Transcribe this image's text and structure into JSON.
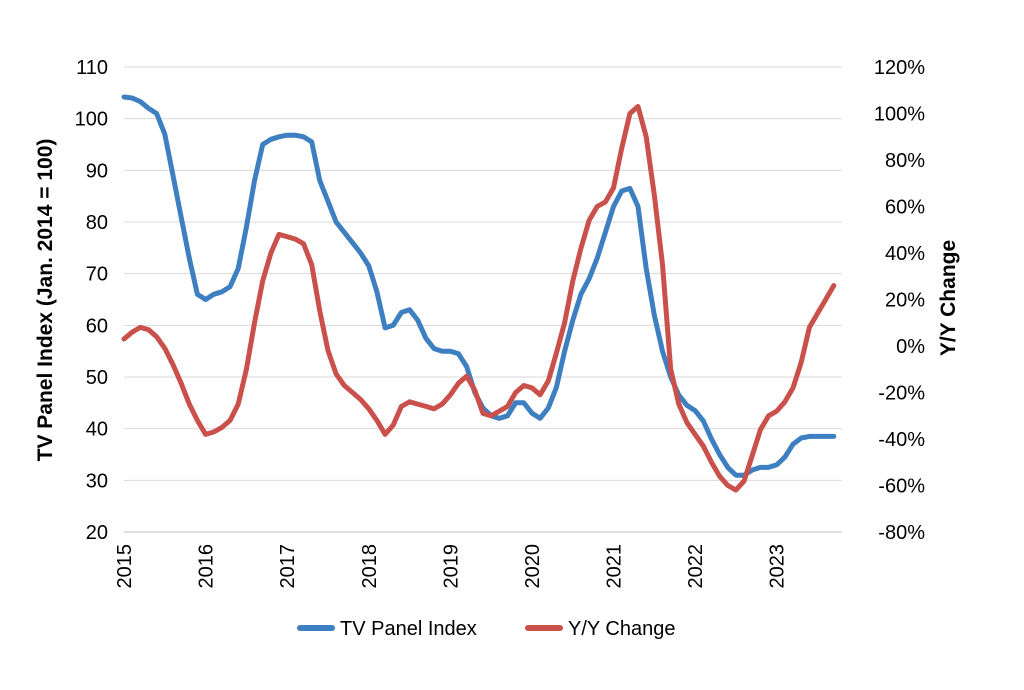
{
  "chart_data": {
    "type": "line",
    "y_label": "TV Panel Index (Jan. 2014 = 100)",
    "y2_label": "Y/Y Change",
    "x_range": [
      2015,
      2023.8
    ],
    "y_range": [
      20,
      110
    ],
    "y2_range": [
      -80,
      120
    ],
    "x_ticks": [
      "2015",
      "2016",
      "2017",
      "2018",
      "2019",
      "2020",
      "2021",
      "2022",
      "2023"
    ],
    "y_ticks": [
      "20",
      "30",
      "40",
      "50",
      "60",
      "70",
      "80",
      "90",
      "100",
      "110"
    ],
    "y2_ticks": [
      "-80%",
      "-60%",
      "-40%",
      "-20%",
      "0%",
      "20%",
      "40%",
      "60%",
      "80%",
      "100%",
      "120%"
    ],
    "grid": true,
    "legend_position": "bottom",
    "series": [
      {
        "name": "TV Panel Index",
        "axis": "left",
        "color": "#3d7fc1",
        "points": [
          [
            2015.0,
            104.2
          ],
          [
            2015.1,
            104.0
          ],
          [
            2015.2,
            103.3
          ],
          [
            2015.3,
            102.0
          ],
          [
            2015.4,
            101.0
          ],
          [
            2015.5,
            97.0
          ],
          [
            2015.6,
            89.0
          ],
          [
            2015.7,
            81.0
          ],
          [
            2015.8,
            73.0
          ],
          [
            2015.9,
            66.0
          ],
          [
            2016.0,
            65.0
          ],
          [
            2016.1,
            66.0
          ],
          [
            2016.2,
            66.5
          ],
          [
            2016.3,
            67.5
          ],
          [
            2016.4,
            71.0
          ],
          [
            2016.5,
            79.0
          ],
          [
            2016.6,
            88.0
          ],
          [
            2016.7,
            95.0
          ],
          [
            2016.8,
            96.0
          ],
          [
            2016.9,
            96.5
          ],
          [
            2017.0,
            96.8
          ],
          [
            2017.1,
            96.8
          ],
          [
            2017.2,
            96.5
          ],
          [
            2017.3,
            95.5
          ],
          [
            2017.4,
            88.0
          ],
          [
            2017.5,
            84.0
          ],
          [
            2017.6,
            80.0
          ],
          [
            2017.7,
            78.0
          ],
          [
            2017.8,
            76.0
          ],
          [
            2017.9,
            74.0
          ],
          [
            2018.0,
            71.5
          ],
          [
            2018.1,
            66.5
          ],
          [
            2018.2,
            59.5
          ],
          [
            2018.3,
            60.0
          ],
          [
            2018.4,
            62.5
          ],
          [
            2018.5,
            63.0
          ],
          [
            2018.6,
            61.0
          ],
          [
            2018.7,
            57.5
          ],
          [
            2018.8,
            55.5
          ],
          [
            2018.9,
            55.0
          ],
          [
            2019.0,
            55.0
          ],
          [
            2019.1,
            54.5
          ],
          [
            2019.2,
            52.0
          ],
          [
            2019.3,
            47.0
          ],
          [
            2019.4,
            44.0
          ],
          [
            2019.5,
            42.5
          ],
          [
            2019.6,
            42.0
          ],
          [
            2019.7,
            42.5
          ],
          [
            2019.8,
            45.0
          ],
          [
            2019.9,
            45.0
          ],
          [
            2020.0,
            43.0
          ],
          [
            2020.1,
            42.0
          ],
          [
            2020.2,
            44.0
          ],
          [
            2020.3,
            48.0
          ],
          [
            2020.4,
            55.0
          ],
          [
            2020.5,
            61.0
          ],
          [
            2020.6,
            66.0
          ],
          [
            2020.7,
            69.0
          ],
          [
            2020.8,
            73.0
          ],
          [
            2020.9,
            78.0
          ],
          [
            2021.0,
            83.0
          ],
          [
            2021.1,
            86.0
          ],
          [
            2021.2,
            86.5
          ],
          [
            2021.3,
            83.0
          ],
          [
            2021.4,
            71.0
          ],
          [
            2021.5,
            62.0
          ],
          [
            2021.6,
            55.0
          ],
          [
            2021.7,
            50.0
          ],
          [
            2021.8,
            46.5
          ],
          [
            2021.9,
            44.5
          ],
          [
            2022.0,
            43.5
          ],
          [
            2022.1,
            41.5
          ],
          [
            2022.2,
            38.0
          ],
          [
            2022.3,
            35.0
          ],
          [
            2022.4,
            32.5
          ],
          [
            2022.5,
            31.0
          ],
          [
            2022.6,
            31.0
          ],
          [
            2022.7,
            32.0
          ],
          [
            2022.8,
            32.5
          ],
          [
            2022.9,
            32.5
          ],
          [
            2023.0,
            33.0
          ],
          [
            2023.1,
            34.5
          ],
          [
            2023.2,
            37.0
          ],
          [
            2023.3,
            38.2
          ],
          [
            2023.4,
            38.5
          ],
          [
            2023.5,
            38.5
          ],
          [
            2023.6,
            38.5
          ],
          [
            2023.7,
            38.5
          ]
        ]
      },
      {
        "name": "Y/Y Change",
        "axis": "right",
        "color": "#c9504b",
        "points": [
          [
            2015.0,
            3.0
          ],
          [
            2015.1,
            6.0
          ],
          [
            2015.2,
            8.0
          ],
          [
            2015.3,
            7.0
          ],
          [
            2015.4,
            4.0
          ],
          [
            2015.5,
            -1.0
          ],
          [
            2015.6,
            -8.0
          ],
          [
            2015.7,
            -16.0
          ],
          [
            2015.8,
            -25.0
          ],
          [
            2015.9,
            -32.0
          ],
          [
            2016.0,
            -38.0
          ],
          [
            2016.1,
            -37.0
          ],
          [
            2016.2,
            -35.0
          ],
          [
            2016.3,
            -32.0
          ],
          [
            2016.4,
            -25.0
          ],
          [
            2016.5,
            -10.0
          ],
          [
            2016.6,
            10.0
          ],
          [
            2016.7,
            28.0
          ],
          [
            2016.8,
            40.0
          ],
          [
            2016.9,
            48.0
          ],
          [
            2017.0,
            47.0
          ],
          [
            2017.1,
            46.0
          ],
          [
            2017.2,
            44.0
          ],
          [
            2017.3,
            35.0
          ],
          [
            2017.4,
            15.0
          ],
          [
            2017.5,
            -2.0
          ],
          [
            2017.6,
            -12.0
          ],
          [
            2017.7,
            -17.0
          ],
          [
            2017.8,
            -20.0
          ],
          [
            2017.9,
            -23.0
          ],
          [
            2018.0,
            -27.0
          ],
          [
            2018.1,
            -32.0
          ],
          [
            2018.2,
            -38.0
          ],
          [
            2018.3,
            -34.0
          ],
          [
            2018.4,
            -26.0
          ],
          [
            2018.5,
            -24.0
          ],
          [
            2018.6,
            -25.0
          ],
          [
            2018.7,
            -26.0
          ],
          [
            2018.8,
            -27.0
          ],
          [
            2018.9,
            -25.0
          ],
          [
            2019.0,
            -21.0
          ],
          [
            2019.1,
            -16.0
          ],
          [
            2019.2,
            -13.0
          ],
          [
            2019.3,
            -19.0
          ],
          [
            2019.4,
            -29.0
          ],
          [
            2019.5,
            -30.0
          ],
          [
            2019.6,
            -28.0
          ],
          [
            2019.7,
            -26.0
          ],
          [
            2019.8,
            -20.0
          ],
          [
            2019.9,
            -17.0
          ],
          [
            2020.0,
            -18.0
          ],
          [
            2020.1,
            -21.0
          ],
          [
            2020.2,
            -15.0
          ],
          [
            2020.3,
            -3.0
          ],
          [
            2020.4,
            10.0
          ],
          [
            2020.5,
            28.0
          ],
          [
            2020.6,
            42.0
          ],
          [
            2020.7,
            54.0
          ],
          [
            2020.8,
            60.0
          ],
          [
            2020.9,
            62.0
          ],
          [
            2021.0,
            68.0
          ],
          [
            2021.1,
            85.0
          ],
          [
            2021.2,
            100.0
          ],
          [
            2021.3,
            103.0
          ],
          [
            2021.4,
            90.0
          ],
          [
            2021.5,
            65.0
          ],
          [
            2021.6,
            35.0
          ],
          [
            2021.7,
            -10.0
          ],
          [
            2021.8,
            -25.0
          ],
          [
            2021.9,
            -33.0
          ],
          [
            2022.0,
            -38.0
          ],
          [
            2022.1,
            -43.0
          ],
          [
            2022.2,
            -50.0
          ],
          [
            2022.3,
            -56.0
          ],
          [
            2022.4,
            -60.0
          ],
          [
            2022.5,
            -62.0
          ],
          [
            2022.6,
            -58.0
          ],
          [
            2022.7,
            -47.0
          ],
          [
            2022.8,
            -36.0
          ],
          [
            2022.9,
            -30.0
          ],
          [
            2023.0,
            -28.0
          ],
          [
            2023.1,
            -24.0
          ],
          [
            2023.2,
            -18.0
          ],
          [
            2023.3,
            -7.0
          ],
          [
            2023.4,
            8.0
          ],
          [
            2023.5,
            14.0
          ],
          [
            2023.6,
            20.0
          ],
          [
            2023.7,
            26.0
          ]
        ]
      }
    ]
  }
}
